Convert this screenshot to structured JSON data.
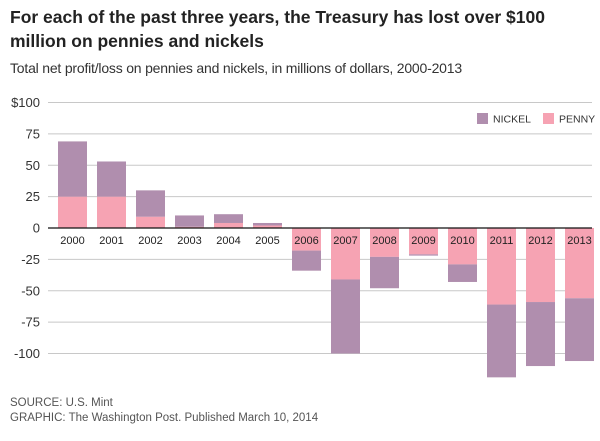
{
  "header": {
    "title": "For each of the past three years, the Treasury has lost over $100 million on pennies and nickels",
    "subtitle": "Total net profit/loss on pennies and nickels, in millions of dollars, 2000-2013"
  },
  "footer": {
    "source": "SOURCE: U.S. Mint",
    "credit": "GRAPHIC: The Washington Post. Published March 10, 2014"
  },
  "colors": {
    "nickel": "#b08eae",
    "penny": "#f6a3b3",
    "grid": "#c8c8c8",
    "axis": "#111111"
  },
  "chart_data": {
    "type": "bar",
    "stacked": true,
    "title": "For each of the past three years, the Treasury has lost over $100 million on pennies and nickels",
    "subtitle": "Total net profit/loss on pennies and nickels, in millions of dollars, 2000-2013",
    "xlabel": "",
    "ylabel": "",
    "ylim": [
      -120,
      100
    ],
    "yticks": [
      100,
      75,
      50,
      25,
      0,
      -25,
      -50,
      -75,
      -100
    ],
    "ytick_labels": [
      "$100",
      "75",
      "50",
      "25",
      "0",
      "-25",
      "-50",
      "-75",
      "-100"
    ],
    "grid": true,
    "legend": {
      "placement": "top-right",
      "entries": [
        "NICKEL",
        "PENNY"
      ]
    },
    "categories": [
      "2000",
      "2001",
      "2002",
      "2003",
      "2004",
      "2005",
      "2006",
      "2007",
      "2008",
      "2009",
      "2010",
      "2011",
      "2012",
      "2013"
    ],
    "series": [
      {
        "name": "PENNY",
        "values": [
          25,
          25,
          9,
          1,
          4,
          2,
          -18,
          -41,
          -23,
          -21,
          -29,
          -61,
          -59,
          -56
        ]
      },
      {
        "name": "NICKEL",
        "values": [
          44,
          28,
          21,
          9,
          7,
          2,
          -16,
          -59,
          -25,
          -1,
          -14,
          -58,
          -51,
          -50
        ]
      }
    ]
  }
}
